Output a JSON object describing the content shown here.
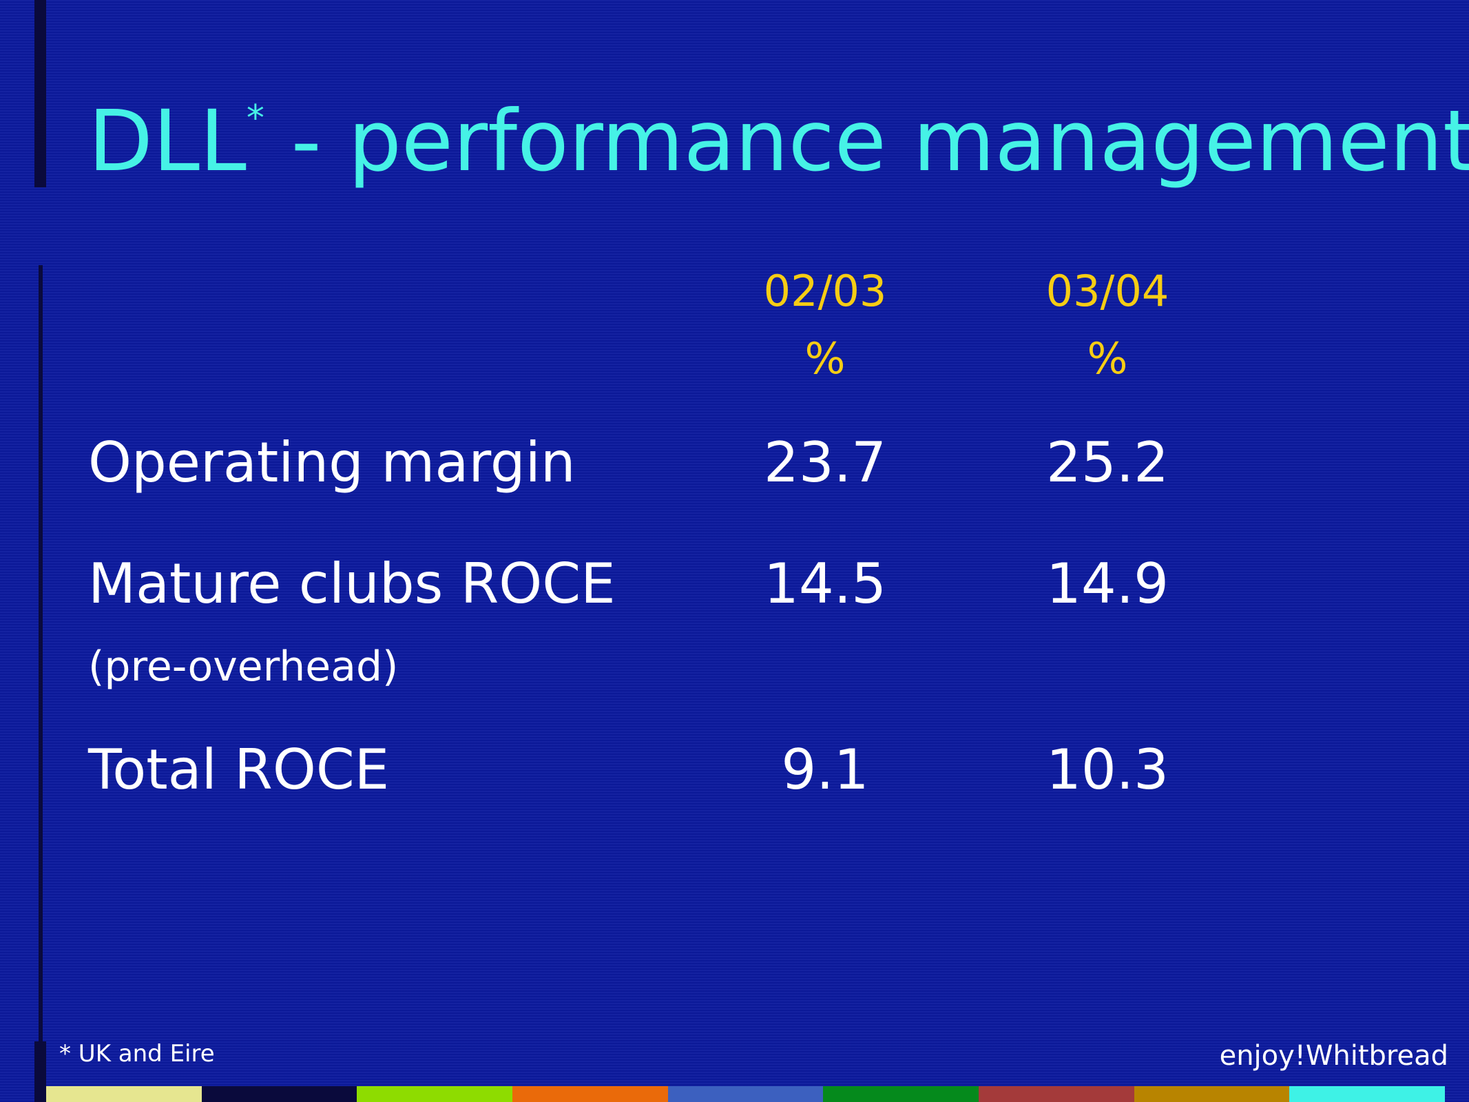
{
  "title": {
    "main": "DLL",
    "marker": "*",
    "rest": " - performance management"
  },
  "table": {
    "columns": [
      {
        "period": "02/03",
        "unit": "%"
      },
      {
        "period": "03/04",
        "unit": "%"
      }
    ],
    "rows": [
      {
        "label": "Operating margin",
        "sublabel": "",
        "values": [
          "23.7",
          "25.2"
        ]
      },
      {
        "label": "Mature clubs ROCE",
        "sublabel": "(pre-overhead)",
        "values": [
          "14.5",
          "14.9"
        ]
      },
      {
        "label": "Total ROCE",
        "sublabel": "",
        "values": [
          "9.1",
          "10.3"
        ]
      }
    ]
  },
  "footnote": "* UK and Eire",
  "brand": "enjoy!Whitbread",
  "colors": {
    "background": "#0c1a9e",
    "title": "#46f2e6",
    "column_header": "#f7cd14",
    "body_text": "#ffffff",
    "accent_bar": "#0a0a3c",
    "stripe": [
      "#e6e690",
      "#0a0a3c",
      "#8edc00",
      "#ea6a0a",
      "#3c60bf",
      "#058a1c",
      "#a43a3a",
      "#b88400",
      "#3ef2e6"
    ]
  }
}
